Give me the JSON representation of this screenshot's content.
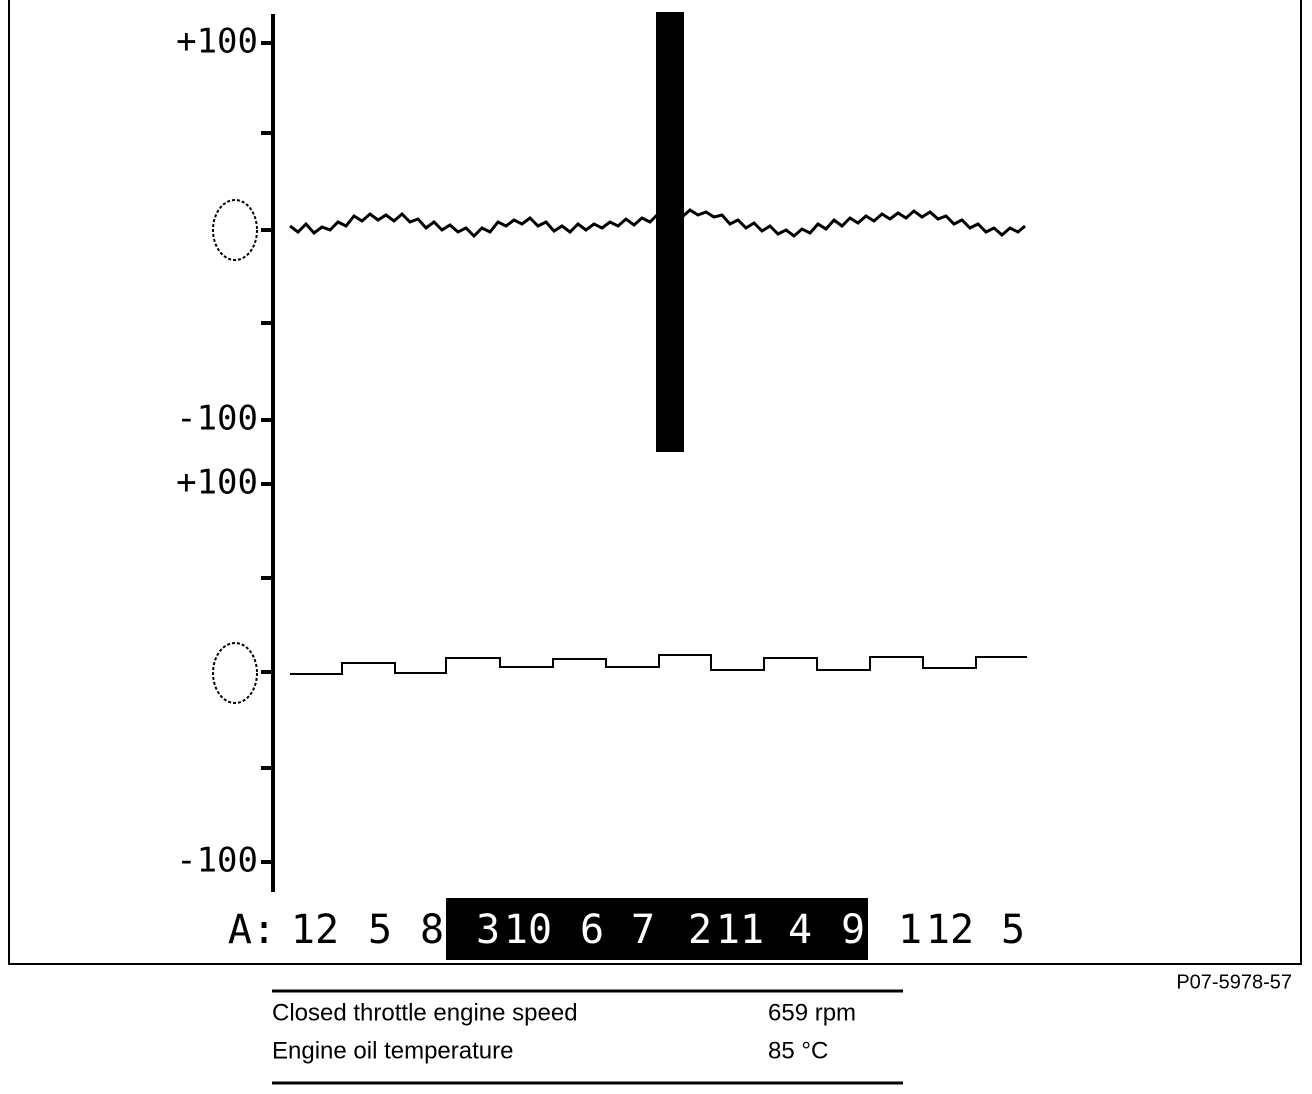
{
  "screen": {
    "panels": [
      {
        "max_label": "+100",
        "min_label": "-100"
      },
      {
        "max_label": "+100",
        "min_label": "-100"
      }
    ],
    "sequence_prefix": "A:",
    "sequence_start": [
      "12",
      "5",
      "8"
    ],
    "sequence_highlighted": [
      "3",
      "10",
      "6",
      "7",
      "2",
      "11",
      "4",
      "9"
    ],
    "sequence_end": [
      "1",
      "12",
      "5"
    ]
  },
  "figure_code": "P07-5978-57",
  "table": {
    "rows": [
      [
        "Closed throttle engine speed",
        "659 rpm"
      ],
      [
        "Engine oil temperature",
        "85 °C"
      ]
    ]
  }
}
